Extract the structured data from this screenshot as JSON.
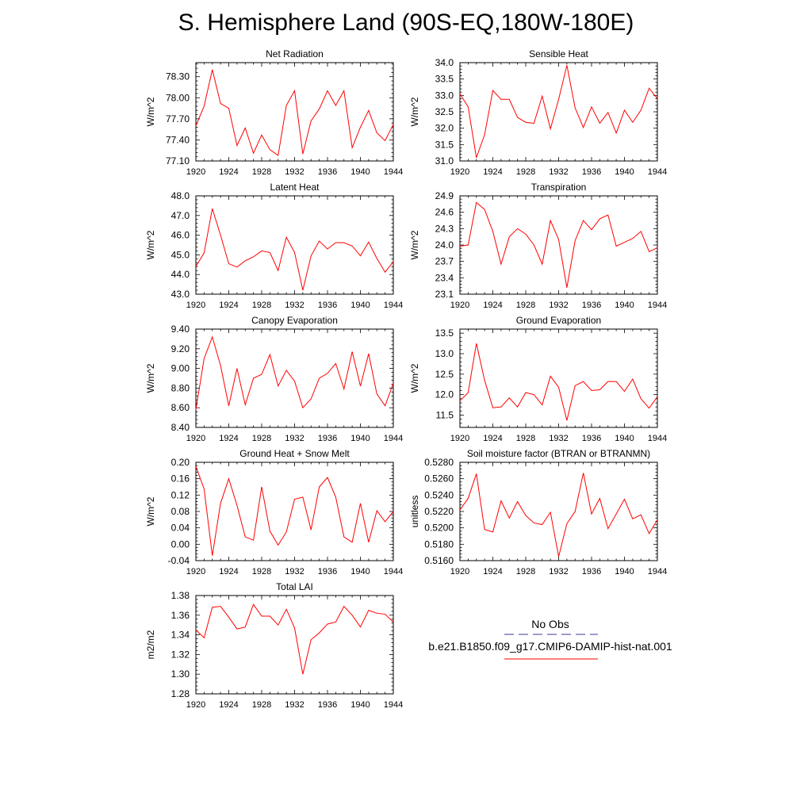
{
  "title": "S. Hemisphere Land (90S-EQ,180W-180E)",
  "legend": {
    "obs_label": "No Obs",
    "obs_color": "#3a3a9a",
    "model_label": "b.e21.B1850.f09_g17.CMIP6-DAMIP-hist-nat.001",
    "model_color": "#ff0000"
  },
  "chart_data": [
    {
      "type": "line",
      "title": "Net Radiation",
      "ylabel": "W/m^2",
      "ylim": [
        77.1,
        78.5
      ],
      "yticks": [
        "77.10",
        "77.40",
        "77.70",
        "78.00",
        "78.30"
      ],
      "xlim": [
        1920,
        1944
      ],
      "xticks": [
        "1920",
        "1924",
        "1928",
        "1932",
        "1936",
        "1940",
        "1944"
      ],
      "series": [
        {
          "color": "#ff0000",
          "x": [
            1920,
            1921,
            1922,
            1923,
            1924,
            1925,
            1926,
            1927,
            1928,
            1929,
            1930,
            1931,
            1932,
            1933,
            1934,
            1935,
            1936,
            1937,
            1938,
            1939,
            1940,
            1941,
            1942,
            1943,
            1944
          ],
          "values": [
            77.6,
            77.88,
            78.4,
            77.92,
            77.85,
            77.32,
            77.57,
            77.21,
            77.47,
            77.26,
            77.18,
            77.89,
            78.1,
            77.2,
            77.67,
            77.84,
            78.1,
            77.89,
            78.1,
            77.29,
            77.58,
            77.82,
            77.5,
            77.39,
            77.62
          ]
        }
      ]
    },
    {
      "type": "line",
      "title": "Sensible Heat",
      "ylabel": "W/m^2",
      "ylim": [
        31.0,
        34.0
      ],
      "yticks": [
        "31.0",
        "31.5",
        "32.0",
        "32.5",
        "33.0",
        "33.5",
        "34.0"
      ],
      "xlim": [
        1920,
        1944
      ],
      "xticks": [
        "1920",
        "1924",
        "1928",
        "1932",
        "1936",
        "1940",
        "1944"
      ],
      "series": [
        {
          "color": "#ff0000",
          "x": [
            1920,
            1921,
            1922,
            1923,
            1924,
            1925,
            1926,
            1927,
            1928,
            1929,
            1930,
            1931,
            1932,
            1933,
            1934,
            1935,
            1936,
            1937,
            1938,
            1939,
            1940,
            1941,
            1942,
            1943,
            1944
          ],
          "values": [
            33.05,
            32.65,
            31.1,
            31.8,
            33.15,
            32.88,
            32.88,
            32.33,
            32.18,
            32.15,
            32.98,
            31.98,
            32.88,
            33.92,
            32.62,
            32.02,
            32.65,
            32.15,
            32.48,
            31.85,
            32.55,
            32.18,
            32.55,
            33.22,
            32.9
          ]
        }
      ]
    },
    {
      "type": "line",
      "title": "Latent Heat",
      "ylabel": "W/m^2",
      "ylim": [
        43.0,
        48.0
      ],
      "yticks": [
        "43.0",
        "44.0",
        "45.0",
        "46.0",
        "47.0",
        "48.0"
      ],
      "xlim": [
        1920,
        1944
      ],
      "xticks": [
        "1920",
        "1924",
        "1928",
        "1932",
        "1936",
        "1940",
        "1944"
      ],
      "series": [
        {
          "color": "#ff0000",
          "x": [
            1920,
            1921,
            1922,
            1923,
            1924,
            1925,
            1926,
            1927,
            1928,
            1929,
            1930,
            1931,
            1932,
            1933,
            1934,
            1935,
            1936,
            1937,
            1938,
            1939,
            1940,
            1941,
            1942,
            1943,
            1944
          ],
          "values": [
            44.4,
            45.1,
            47.35,
            46.0,
            44.55,
            44.38,
            44.7,
            44.9,
            45.2,
            45.12,
            44.2,
            45.9,
            45.12,
            43.2,
            44.95,
            45.7,
            45.3,
            45.62,
            45.62,
            45.45,
            44.95,
            45.65,
            44.82,
            44.12,
            44.65
          ]
        }
      ]
    },
    {
      "type": "line",
      "title": "Transpiration",
      "ylabel": "W/m^2",
      "ylim": [
        23.1,
        24.9
      ],
      "yticks": [
        "23.1",
        "23.4",
        "23.7",
        "24.0",
        "24.3",
        "24.6",
        "24.9"
      ],
      "xlim": [
        1920,
        1944
      ],
      "xticks": [
        "1920",
        "1924",
        "1928",
        "1932",
        "1936",
        "1940",
        "1944"
      ],
      "series": [
        {
          "color": "#ff0000",
          "x": [
            1920,
            1921,
            1922,
            1923,
            1924,
            1925,
            1926,
            1927,
            1928,
            1929,
            1930,
            1931,
            1932,
            1933,
            1934,
            1935,
            1936,
            1937,
            1938,
            1939,
            1940,
            1941,
            1942,
            1943,
            1944
          ],
          "values": [
            23.98,
            24.0,
            24.78,
            24.65,
            24.25,
            23.65,
            24.15,
            24.3,
            24.2,
            24.0,
            23.65,
            24.45,
            24.1,
            23.22,
            24.08,
            24.45,
            24.28,
            24.48,
            24.55,
            23.98,
            24.05,
            24.12,
            24.25,
            23.88,
            23.95
          ]
        }
      ]
    },
    {
      "type": "line",
      "title": "Canopy Evaporation",
      "ylabel": "W/m^2",
      "ylim": [
        8.4,
        9.4
      ],
      "yticks": [
        "8.40",
        "8.60",
        "8.80",
        "9.00",
        "9.20",
        "9.40"
      ],
      "xlim": [
        1920,
        1944
      ],
      "xticks": [
        "1920",
        "1924",
        "1928",
        "1932",
        "1936",
        "1940",
        "1944"
      ],
      "series": [
        {
          "color": "#ff0000",
          "x": [
            1920,
            1921,
            1922,
            1923,
            1924,
            1925,
            1926,
            1927,
            1928,
            1929,
            1930,
            1931,
            1932,
            1933,
            1934,
            1935,
            1936,
            1937,
            1938,
            1939,
            1940,
            1941,
            1942,
            1943,
            1944
          ],
          "values": [
            8.58,
            9.1,
            9.32,
            9.03,
            8.62,
            9.0,
            8.63,
            8.9,
            8.94,
            9.14,
            8.82,
            8.98,
            8.87,
            8.6,
            8.69,
            8.9,
            8.95,
            9.05,
            8.79,
            9.17,
            8.82,
            9.15,
            8.74,
            8.62,
            8.85
          ]
        }
      ]
    },
    {
      "type": "line",
      "title": "Ground Evaporation",
      "ylabel": "W/m^2",
      "ylim": [
        11.2,
        13.6
      ],
      "yticks": [
        "11.5",
        "12.0",
        "12.5",
        "13.0",
        "13.5"
      ],
      "xlim": [
        1920,
        1944
      ],
      "xticks": [
        "1920",
        "1924",
        "1928",
        "1932",
        "1936",
        "1940",
        "1944"
      ],
      "series": [
        {
          "color": "#ff0000",
          "x": [
            1920,
            1921,
            1922,
            1923,
            1924,
            1925,
            1926,
            1927,
            1928,
            1929,
            1930,
            1931,
            1932,
            1933,
            1934,
            1935,
            1936,
            1937,
            1938,
            1939,
            1940,
            1941,
            1942,
            1943,
            1944
          ],
          "values": [
            11.85,
            12.05,
            13.25,
            12.35,
            11.68,
            11.7,
            11.92,
            11.7,
            12.05,
            12.0,
            11.75,
            12.45,
            12.18,
            11.37,
            12.22,
            12.32,
            12.1,
            12.12,
            12.32,
            12.32,
            12.08,
            12.38,
            11.9,
            11.67,
            11.95
          ]
        }
      ]
    },
    {
      "type": "line",
      "title": "Ground Heat + Snow Melt",
      "ylabel": "W/m^2",
      "ylim": [
        -0.04,
        0.2
      ],
      "yticks": [
        "-0.04",
        "0.00",
        "0.04",
        "0.08",
        "0.12",
        "0.16",
        "0.20"
      ],
      "xlim": [
        1920,
        1944
      ],
      "xticks": [
        "1920",
        "1924",
        "1928",
        "1932",
        "1936",
        "1940",
        "1944"
      ],
      "series": [
        {
          "color": "#ff0000",
          "x": [
            1920,
            1921,
            1922,
            1923,
            1924,
            1925,
            1926,
            1927,
            1928,
            1929,
            1930,
            1931,
            1932,
            1933,
            1934,
            1935,
            1936,
            1937,
            1938,
            1939,
            1940,
            1941,
            1942,
            1943,
            1944
          ],
          "values": [
            0.19,
            0.135,
            -0.028,
            0.1,
            0.16,
            0.095,
            0.018,
            0.01,
            0.14,
            0.032,
            -0.002,
            0.03,
            0.11,
            0.115,
            0.035,
            0.14,
            0.163,
            0.115,
            0.018,
            0.005,
            0.1,
            0.005,
            0.082,
            0.055,
            0.08
          ]
        }
      ]
    },
    {
      "type": "line",
      "title": "Soil moisture factor (BTRAN or BTRANMN)",
      "ylabel": "unitless",
      "ylim": [
        0.516,
        0.528
      ],
      "yticks": [
        "0.5160",
        "0.5180",
        "0.5200",
        "0.5220",
        "0.5240",
        "0.5260",
        "0.5280"
      ],
      "xlim": [
        1920,
        1944
      ],
      "xticks": [
        "1920",
        "1924",
        "1928",
        "1932",
        "1936",
        "1940",
        "1944"
      ],
      "series": [
        {
          "color": "#ff0000",
          "x": [
            1920,
            1921,
            1922,
            1923,
            1924,
            1925,
            1926,
            1927,
            1928,
            1929,
            1930,
            1931,
            1932,
            1933,
            1934,
            1935,
            1936,
            1937,
            1938,
            1939,
            1940,
            1941,
            1942,
            1943,
            1944
          ],
          "values": [
            0.5222,
            0.5236,
            0.5266,
            0.5198,
            0.5195,
            0.5233,
            0.5212,
            0.5232,
            0.5215,
            0.5206,
            0.5204,
            0.5219,
            0.5165,
            0.5205,
            0.522,
            0.5267,
            0.5217,
            0.5236,
            0.5199,
            0.5217,
            0.5235,
            0.5211,
            0.5216,
            0.5193,
            0.521
          ]
        }
      ]
    },
    {
      "type": "line",
      "title": "Total LAI",
      "ylabel": "m2/m2",
      "ylim": [
        1.28,
        1.38
      ],
      "yticks": [
        "1.28",
        "1.30",
        "1.32",
        "1.34",
        "1.36",
        "1.38"
      ],
      "xlim": [
        1920,
        1944
      ],
      "xticks": [
        "1920",
        "1924",
        "1928",
        "1932",
        "1936",
        "1940",
        "1944"
      ],
      "series": [
        {
          "color": "#ff0000",
          "x": [
            1920,
            1921,
            1922,
            1923,
            1924,
            1925,
            1926,
            1927,
            1928,
            1929,
            1930,
            1931,
            1932,
            1933,
            1934,
            1935,
            1936,
            1937,
            1938,
            1939,
            1940,
            1941,
            1942,
            1943,
            1944
          ],
          "values": [
            1.345,
            1.337,
            1.368,
            1.369,
            1.358,
            1.346,
            1.348,
            1.371,
            1.359,
            1.359,
            1.35,
            1.366,
            1.347,
            1.3,
            1.335,
            1.342,
            1.351,
            1.353,
            1.369,
            1.36,
            1.348,
            1.365,
            1.362,
            1.361,
            1.353
          ]
        }
      ]
    }
  ]
}
